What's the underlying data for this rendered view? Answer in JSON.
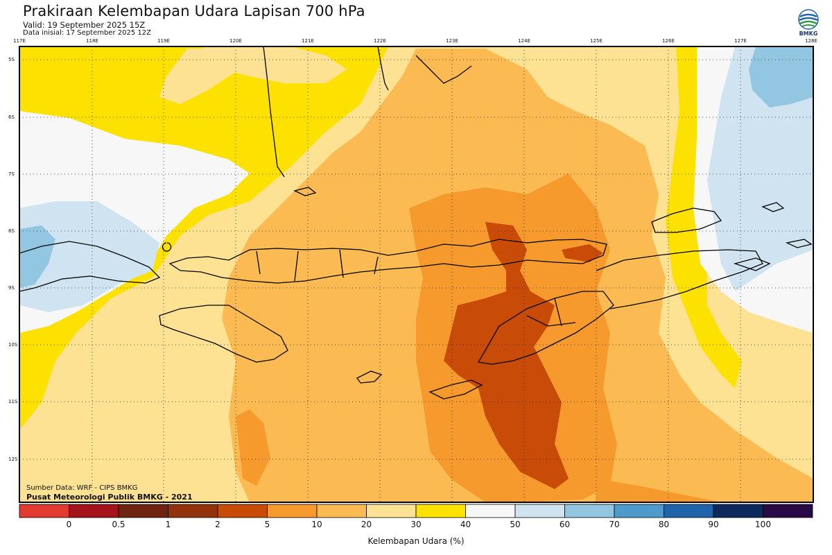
{
  "header": {
    "title": "Prakiraan Kelembapan Udara Lapisan 700 hPa",
    "valid": "Valid: 19 September 2025 15Z",
    "init": "Data inisial: 17 September 2025 12Z"
  },
  "logo": {
    "label": "BMKG",
    "icon": "bmkg-logo-icon"
  },
  "map": {
    "lon_labels": [
      "117E",
      "118E",
      "119E",
      "120E",
      "121E",
      "122E",
      "123E",
      "124E",
      "125E",
      "126E",
      "127E",
      "128E"
    ],
    "lat_labels": [
      "5S",
      "6S",
      "7S",
      "8S",
      "9S",
      "10S",
      "11S",
      "12S"
    ]
  },
  "credits": {
    "line1": "Sumber Data: WRF - CIPS BMKG",
    "line2": "Pusat Meteorologi Publik BMKG - 2021"
  },
  "colorbar": {
    "title": "Kelembapan Udara (%)",
    "ticks": [
      "0",
      "0.5",
      "1",
      "2",
      "5",
      "10",
      "20",
      "30",
      "40",
      "50",
      "60",
      "70",
      "80",
      "90",
      "100"
    ],
    "colors": [
      "#e03a31",
      "#a5131a",
      "#6e2410",
      "#93330b",
      "#c84b08",
      "#f69a2d",
      "#fbbb52",
      "#fde293",
      "#fde101",
      "#f7f7f7",
      "#cfe4f0",
      "#93c6e0",
      "#4c9bcb",
      "#1f63aa",
      "#0c2a5e",
      "#2a0a46"
    ]
  },
  "palette": {
    "yellow": "#fde101",
    "light_orange": "#fde293",
    "orange_20": "#fbbb52",
    "orange_10": "#f69a2d",
    "dark_orange": "#c84b08",
    "white": "#f7f7f7",
    "light_blue": "#cfe4f0",
    "mid_blue": "#93c6e0"
  }
}
